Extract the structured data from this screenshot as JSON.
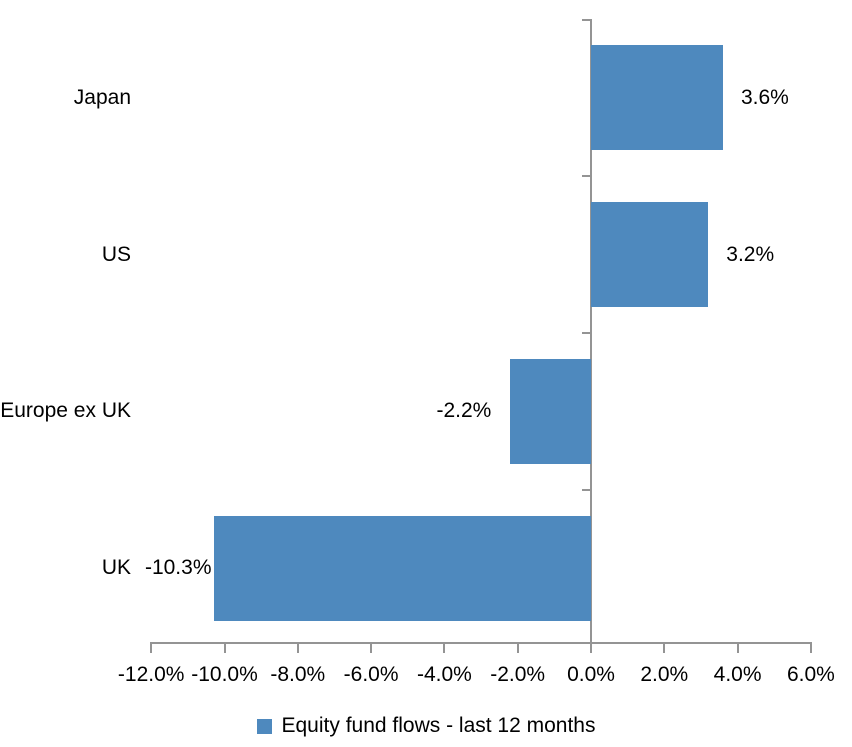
{
  "chart_data": {
    "type": "bar",
    "orientation": "horizontal",
    "title": "",
    "categories": [
      "Japan",
      "US",
      "Europe ex UK",
      "UK"
    ],
    "series": [
      {
        "name": "Equity fund flows - last 12 months",
        "values": [
          3.6,
          3.2,
          -2.2,
          -10.3
        ],
        "data_labels": [
          "3.6%",
          "3.2%",
          "-2.2%",
          "-10.3%"
        ]
      }
    ],
    "x_axis": {
      "min": -12,
      "max": 6,
      "step": 2,
      "tick_labels": [
        "-12.0%",
        "-10.0%",
        "-8.0%",
        "-6.0%",
        "-4.0%",
        "-2.0%",
        "0.0%",
        "2.0%",
        "4.0%",
        "6.0%"
      ]
    },
    "grid": false,
    "legend_position": "bottom",
    "colors": {
      "bar_fill": "#4E89BE",
      "axis_line": "#949494",
      "text": "#000000"
    }
  },
  "legend": {
    "label": "Equity fund flows - last 12 months"
  }
}
